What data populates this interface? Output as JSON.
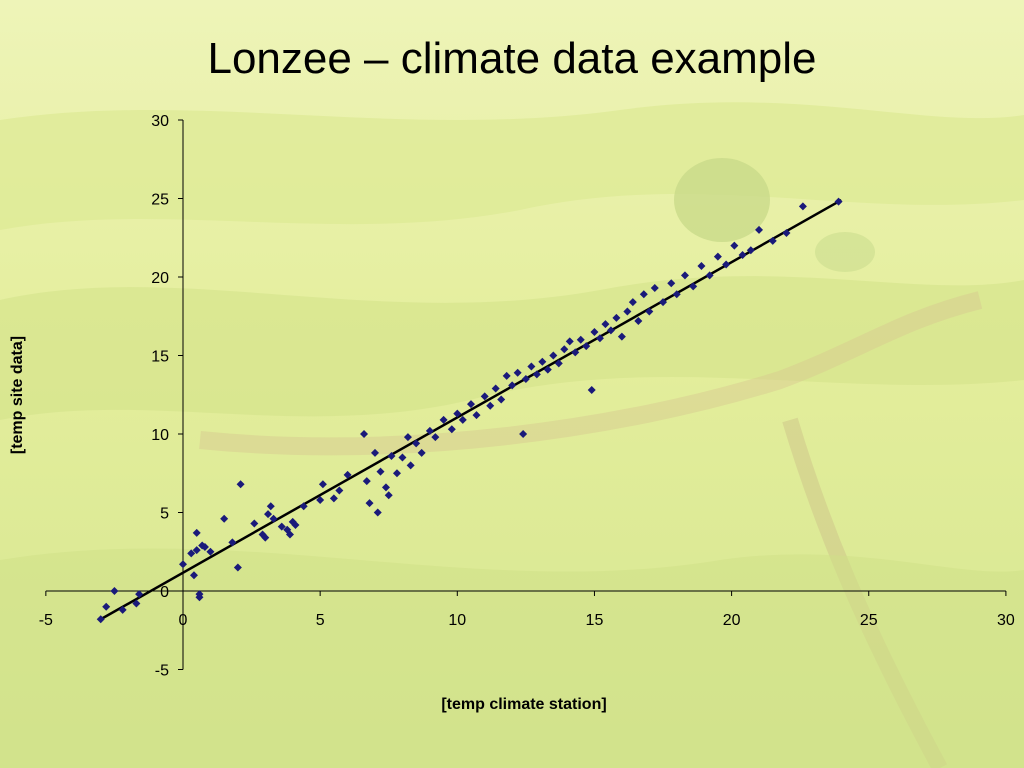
{
  "slide": {
    "title": "Lonzee – climate data example"
  },
  "colors": {
    "marker": "#1a1a7a",
    "fit_line": "#000000",
    "background": "#e6ef9a"
  },
  "chart_data": {
    "type": "scatter",
    "title": "",
    "xlabel": "[temp climate station]",
    "ylabel": "[temp site data]",
    "xlim": [
      -5,
      30
    ],
    "ylim": [
      -5,
      30
    ],
    "xticks": [
      "-5",
      "0",
      "5",
      "10",
      "15",
      "20",
      "25",
      "30"
    ],
    "yticks": [
      "-5",
      "0",
      "5",
      "10",
      "15",
      "20",
      "25",
      "30"
    ],
    "grid": false,
    "legend": "none",
    "fit_line": {
      "x": [
        -3,
        24
      ],
      "y": [
        -1.8,
        24.9
      ]
    },
    "points": [
      [
        -3.0,
        -1.8
      ],
      [
        -2.8,
        -1.0
      ],
      [
        -2.5,
        0.0
      ],
      [
        -2.2,
        -1.2
      ],
      [
        -1.7,
        -0.8
      ],
      [
        -1.6,
        -0.2
      ],
      [
        0.0,
        1.7
      ],
      [
        0.3,
        2.4
      ],
      [
        0.4,
        1.0
      ],
      [
        0.5,
        3.7
      ],
      [
        0.6,
        -0.4
      ],
      [
        0.6,
        -0.2
      ],
      [
        0.5,
        2.6
      ],
      [
        0.7,
        2.9
      ],
      [
        0.8,
        2.8
      ],
      [
        1.0,
        2.5
      ],
      [
        1.5,
        4.6
      ],
      [
        1.8,
        3.1
      ],
      [
        2.0,
        1.5
      ],
      [
        2.1,
        6.8
      ],
      [
        2.6,
        4.3
      ],
      [
        2.9,
        3.6
      ],
      [
        3.0,
        3.4
      ],
      [
        3.1,
        4.9
      ],
      [
        3.2,
        5.4
      ],
      [
        3.3,
        4.6
      ],
      [
        3.6,
        4.1
      ],
      [
        3.8,
        3.9
      ],
      [
        3.9,
        3.6
      ],
      [
        4.0,
        4.4
      ],
      [
        4.1,
        4.2
      ],
      [
        4.4,
        5.4
      ],
      [
        5.0,
        5.8
      ],
      [
        5.1,
        6.8
      ],
      [
        5.5,
        5.9
      ],
      [
        5.7,
        6.4
      ],
      [
        6.0,
        7.4
      ],
      [
        6.6,
        10.0
      ],
      [
        6.7,
        7.0
      ],
      [
        6.8,
        5.6
      ],
      [
        7.0,
        8.8
      ],
      [
        7.1,
        5.0
      ],
      [
        7.2,
        7.6
      ],
      [
        7.4,
        6.6
      ],
      [
        7.5,
        6.1
      ],
      [
        7.6,
        8.6
      ],
      [
        7.8,
        7.5
      ],
      [
        8.0,
        8.5
      ],
      [
        8.2,
        9.8
      ],
      [
        8.3,
        8.0
      ],
      [
        8.5,
        9.4
      ],
      [
        8.7,
        8.8
      ],
      [
        9.0,
        10.2
      ],
      [
        9.2,
        9.8
      ],
      [
        9.5,
        10.9
      ],
      [
        9.8,
        10.3
      ],
      [
        10.0,
        11.3
      ],
      [
        10.2,
        10.9
      ],
      [
        10.5,
        11.9
      ],
      [
        10.7,
        11.2
      ],
      [
        11.0,
        12.4
      ],
      [
        11.2,
        11.8
      ],
      [
        11.4,
        12.9
      ],
      [
        11.6,
        12.2
      ],
      [
        11.8,
        13.7
      ],
      [
        12.0,
        13.1
      ],
      [
        12.2,
        13.9
      ],
      [
        12.4,
        10.0
      ],
      [
        12.5,
        13.5
      ],
      [
        12.7,
        14.3
      ],
      [
        12.9,
        13.8
      ],
      [
        13.1,
        14.6
      ],
      [
        13.3,
        14.1
      ],
      [
        13.5,
        15.0
      ],
      [
        13.7,
        14.5
      ],
      [
        13.9,
        15.4
      ],
      [
        14.1,
        15.9
      ],
      [
        14.3,
        15.2
      ],
      [
        14.5,
        16.0
      ],
      [
        14.7,
        15.6
      ],
      [
        14.9,
        12.8
      ],
      [
        15.0,
        16.5
      ],
      [
        15.2,
        16.1
      ],
      [
        15.4,
        17.0
      ],
      [
        15.6,
        16.6
      ],
      [
        15.8,
        17.4
      ],
      [
        16.0,
        16.2
      ],
      [
        16.2,
        17.8
      ],
      [
        16.4,
        18.4
      ],
      [
        16.6,
        17.2
      ],
      [
        16.8,
        18.9
      ],
      [
        17.0,
        17.8
      ],
      [
        17.2,
        19.3
      ],
      [
        17.5,
        18.4
      ],
      [
        17.8,
        19.6
      ],
      [
        18.0,
        18.9
      ],
      [
        18.3,
        20.1
      ],
      [
        18.6,
        19.4
      ],
      [
        18.9,
        20.7
      ],
      [
        19.2,
        20.1
      ],
      [
        19.5,
        21.3
      ],
      [
        19.8,
        20.8
      ],
      [
        20.1,
        22.0
      ],
      [
        20.4,
        21.4
      ],
      [
        20.7,
        21.7
      ],
      [
        21.0,
        23.0
      ],
      [
        21.5,
        22.3
      ],
      [
        22.0,
        22.8
      ],
      [
        22.6,
        24.5
      ],
      [
        23.9,
        24.8
      ]
    ]
  }
}
